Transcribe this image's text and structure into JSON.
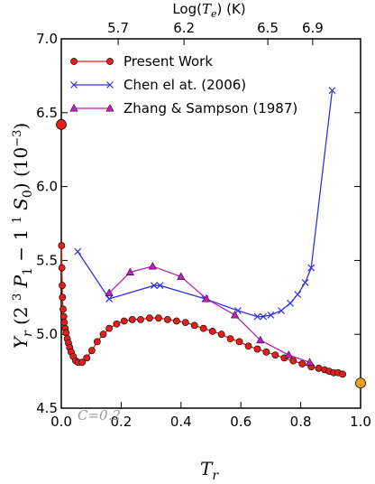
{
  "chart_data": {
    "type": "line",
    "xlabel": "T_r",
    "ylabel": "Υ_r (2 ³P₁ − 1 ¹S₀) (10⁻³)",
    "top_xlabel": "Log(T_e) (K)",
    "xlim": [
      0.0,
      1.0
    ],
    "ylim": [
      4.5,
      7.0
    ],
    "x_ticks": [
      "0.0",
      "0.2",
      "0.4",
      "0.6",
      "0.8",
      "1.0"
    ],
    "y_ticks": [
      "4.5",
      "5.0",
      "5.5",
      "6.0",
      "6.5",
      "7.0"
    ],
    "top_ticks": [
      {
        "label": "5.7",
        "x": 0.19
      },
      {
        "label": "6.2",
        "x": 0.41
      },
      {
        "label": "6.5",
        "x": 0.69
      },
      {
        "label": "6.9",
        "x": 0.84
      }
    ],
    "grid": false,
    "legend_position": "top-left",
    "annotation": "C=0.2",
    "series": [
      {
        "name": "Present Work",
        "color": "#e0201b",
        "marker": "circle",
        "points": [
          [
            0.001,
            5.6
          ],
          [
            0.002,
            5.45
          ],
          [
            0.003,
            5.33
          ],
          [
            0.004,
            5.25
          ],
          [
            0.006,
            5.17
          ],
          [
            0.008,
            5.12
          ],
          [
            0.01,
            5.08
          ],
          [
            0.013,
            5.04
          ],
          [
            0.016,
            5.01
          ],
          [
            0.02,
            4.97
          ],
          [
            0.024,
            4.94
          ],
          [
            0.028,
            4.91
          ],
          [
            0.033,
            4.88
          ],
          [
            0.04,
            4.85
          ],
          [
            0.048,
            4.82
          ],
          [
            0.057,
            4.81
          ],
          [
            0.07,
            4.81
          ],
          [
            0.085,
            4.84
          ],
          [
            0.102,
            4.89
          ],
          [
            0.12,
            4.95
          ],
          [
            0.14,
            5.0
          ],
          [
            0.16,
            5.04
          ],
          [
            0.185,
            5.07
          ],
          [
            0.21,
            5.09
          ],
          [
            0.237,
            5.1
          ],
          [
            0.265,
            5.1
          ],
          [
            0.295,
            5.11
          ],
          [
            0.325,
            5.11
          ],
          [
            0.355,
            5.1
          ],
          [
            0.385,
            5.09
          ],
          [
            0.415,
            5.08
          ],
          [
            0.445,
            5.06
          ],
          [
            0.475,
            5.04
          ],
          [
            0.505,
            5.02
          ],
          [
            0.535,
            5.0
          ],
          [
            0.565,
            4.97
          ],
          [
            0.595,
            4.95
          ],
          [
            0.625,
            4.92
          ],
          [
            0.655,
            4.9
          ],
          [
            0.685,
            4.88
          ],
          [
            0.715,
            4.86
          ],
          [
            0.745,
            4.84
          ],
          [
            0.775,
            4.82
          ],
          [
            0.805,
            4.8
          ],
          [
            0.835,
            4.78
          ],
          [
            0.86,
            4.77
          ],
          [
            0.88,
            4.76
          ],
          [
            0.895,
            4.75
          ],
          [
            0.91,
            4.74
          ],
          [
            0.925,
            4.74
          ],
          [
            0.94,
            4.73
          ]
        ]
      },
      {
        "name": "Chen el at. (2006)",
        "color": "#3333e6",
        "marker": "x",
        "points": [
          [
            0.055,
            5.56
          ],
          [
            0.16,
            5.24
          ],
          [
            0.31,
            5.33
          ],
          [
            0.33,
            5.33
          ],
          [
            0.48,
            5.24
          ],
          [
            0.59,
            5.16
          ],
          [
            0.655,
            5.12
          ],
          [
            0.675,
            5.12
          ],
          [
            0.7,
            5.13
          ],
          [
            0.735,
            5.16
          ],
          [
            0.765,
            5.21
          ],
          [
            0.79,
            5.27
          ],
          [
            0.815,
            5.35
          ],
          [
            0.835,
            5.45
          ],
          [
            0.905,
            6.65
          ]
        ]
      },
      {
        "name": "Zhang & Sampson (1987)",
        "color": "#bb20bb",
        "marker": "triangle",
        "points": [
          [
            0.16,
            5.28
          ],
          [
            0.23,
            5.42
          ],
          [
            0.305,
            5.46
          ],
          [
            0.4,
            5.39
          ],
          [
            0.485,
            5.24
          ],
          [
            0.58,
            5.13
          ],
          [
            0.665,
            4.96
          ],
          [
            0.76,
            4.86
          ],
          [
            0.83,
            4.81
          ]
        ]
      }
    ],
    "extra_points": [
      {
        "x": 0.0,
        "y": 6.42,
        "color": "#e0201b"
      },
      {
        "x": 1.0,
        "y": 4.67,
        "color": "#f0a020"
      }
    ]
  }
}
